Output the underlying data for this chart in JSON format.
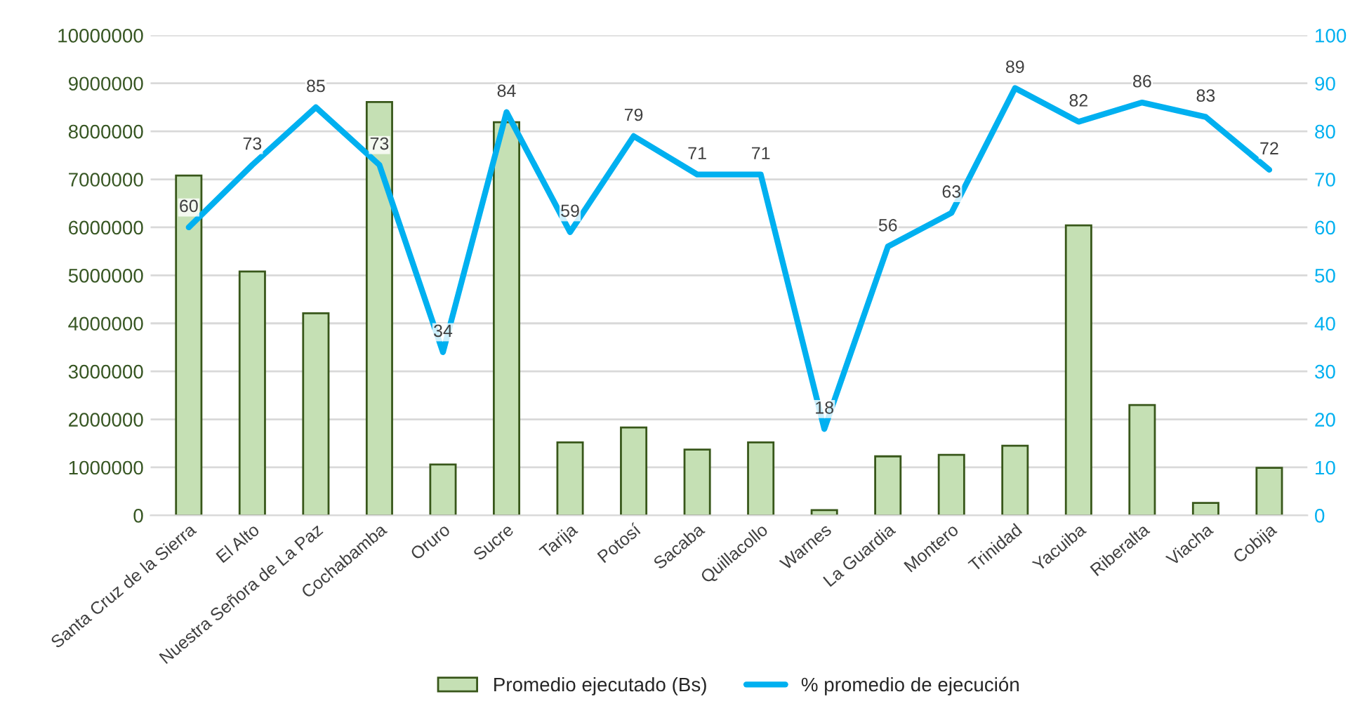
{
  "chart_data": {
    "type": "bar",
    "categories": [
      "Santa Cruz de la Sierra",
      "El Alto",
      "Nuestra Señora de La Paz",
      "Cochabamba",
      "Oruro",
      "Sucre",
      "Tarija",
      "Potosí",
      "Sacaba",
      "Quillacollo",
      "Warnes",
      "La Guardia",
      "Montero",
      "Trinidad",
      "Yacuiba",
      "Riberalta",
      "Viacha",
      "Cobija"
    ],
    "series": [
      {
        "name": "Promedio ejecutado (Bs)",
        "color": "#c5e0b4",
        "values": [
          7080000,
          5080000,
          4210000,
          8610000,
          1060000,
          8190000,
          1520000,
          1830000,
          1370000,
          1520000,
          110000,
          1230000,
          1260000,
          1450000,
          6040000,
          2300000,
          260000,
          990000
        ]
      },
      {
        "name": "% promedio de ejecución",
        "type": "line",
        "axis": "y2",
        "color": "#00b0f0",
        "data_labels": true,
        "values": [
          60,
          73,
          85,
          73,
          34,
          84,
          59,
          79,
          71,
          71,
          18,
          56,
          63,
          89,
          82,
          86,
          83,
          72
        ]
      }
    ],
    "ylim": [
      0,
      10000000
    ],
    "yticks": [
      0,
      1000000,
      2000000,
      3000000,
      4000000,
      5000000,
      6000000,
      7000000,
      8000000,
      9000000,
      10000000
    ],
    "y2lim": [
      0,
      100
    ],
    "y2ticks": [
      0,
      10,
      20,
      30,
      40,
      50,
      60,
      70,
      80,
      90,
      100
    ],
    "grid": "y",
    "legend": "bottom",
    "marker": "none",
    "line_style": "solid"
  }
}
